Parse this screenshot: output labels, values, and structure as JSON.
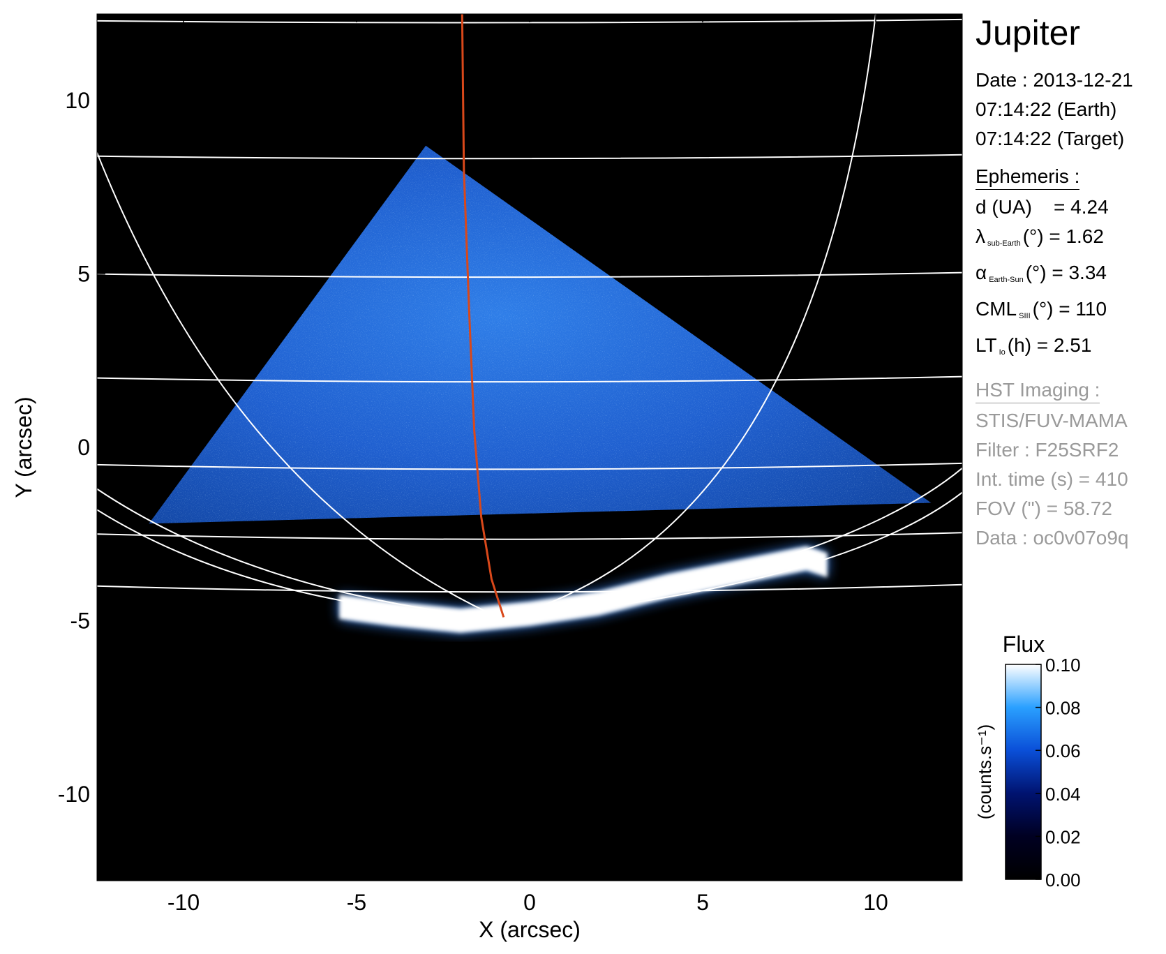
{
  "chart_data": {
    "type": "heatmap",
    "title": "Jupiter",
    "xlabel": "X (arcsec)",
    "ylabel": "Y (arcsec)",
    "xlim": [
      -12.5,
      12.5
    ],
    "ylim": [
      -12.5,
      12.5
    ],
    "xticks": [
      -10,
      -5,
      0,
      5,
      10
    ],
    "yticks": [
      -10,
      -5,
      0,
      5,
      10
    ],
    "colorbar": {
      "title": "Flux",
      "label": "(counts.s⁻¹)",
      "range": [
        0.0,
        0.1
      ],
      "ticks": [
        "0.00",
        "0.02",
        "0.04",
        "0.06",
        "0.08",
        "0.10"
      ],
      "colors": [
        "#000000",
        "#000022",
        "#001370",
        "#0a4fd8",
        "#2aa0ff",
        "#ffffff"
      ]
    },
    "exposure_region": [
      [
        -11,
        -2.2
      ],
      [
        -3,
        8.7
      ],
      [
        11.6,
        -1.6
      ]
    ],
    "latitude_lines_y": [
      12.3,
      8.4,
      5.0,
      2.0,
      -0.5,
      -2.5,
      -4.0
    ],
    "auroral_oval": {
      "description_free": true,
      "points": [
        [
          -5.5,
          -4.6
        ],
        [
          -4,
          -4.8
        ],
        [
          -2,
          -5.0
        ],
        [
          0,
          -4.8
        ],
        [
          2,
          -4.5
        ],
        [
          4,
          -4.0
        ],
        [
          6,
          -3.6
        ],
        [
          8,
          -3.2
        ],
        [
          8.6,
          -3.4
        ]
      ]
    },
    "io_footpath": [
      [
        -1.95,
        12.5
      ],
      [
        -1.9,
        8.0
      ],
      [
        -1.75,
        4.0
      ],
      [
        -1.6,
        0.5
      ],
      [
        -1.4,
        -2.0
      ],
      [
        -1.1,
        -3.8
      ],
      [
        -0.75,
        -4.9
      ]
    ]
  },
  "panel": {
    "title": "Jupiter",
    "date": "Date : 2013-12-21",
    "time_earth": "07:14:22 (Earth)",
    "time_target": "07:14:22 (Target)",
    "ephemeris_header": "Ephemeris :",
    "d_label": "d (UA)",
    "d_value": "= 4.24",
    "lambda_symbol": "λ",
    "lambda_sub": "sub-Earth",
    "lambda_rest": "(°) = 1.62",
    "alpha_symbol": "α",
    "alpha_sub": "Earth-Sun",
    "alpha_rest": "(°) = 3.34",
    "cml_label": "CML",
    "cml_sub": "SIII",
    "cml_rest": "(°) = 110",
    "lt_label": "LT",
    "lt_sub": "Io",
    "lt_rest": "(h) = 2.51",
    "hst_header": "HST Imaging :",
    "instrument": "STIS/FUV-MAMA",
    "filter": "Filter : F25SRF2",
    "int_time": "Int. time (s) = 410",
    "fov": "FOV (\") = 58.72",
    "data_id": "Data : oc0v07o9q"
  }
}
